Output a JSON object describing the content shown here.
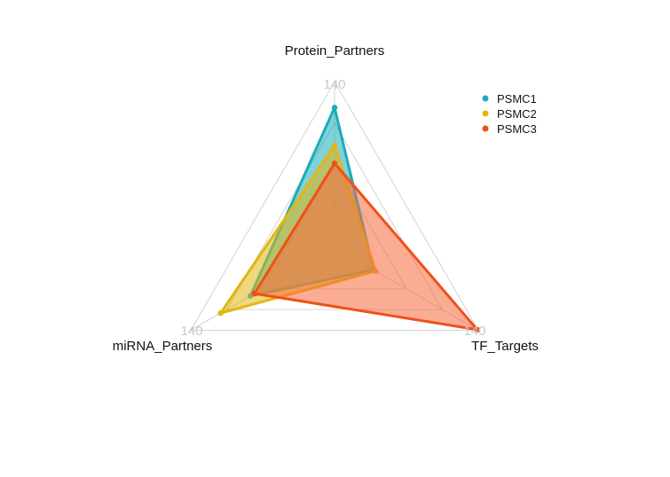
{
  "chart_data": {
    "type": "radar",
    "axes": [
      "Protein_Partners",
      "TF_Targets",
      "miRNA_Partners"
    ],
    "axis_max_label": "140",
    "max": 140,
    "grid_levels": 4,
    "legend_position": "top-right",
    "series": [
      {
        "name": "PSMC1",
        "color": "#1aacb8",
        "fill": "#1aacb8",
        "values": [
          118,
          38,
          82
        ]
      },
      {
        "name": "PSMC2",
        "color": "#e2b713",
        "fill": "#e2b713",
        "values": [
          86,
          40,
          111
        ]
      },
      {
        "name": "PSMC3",
        "color": "#f05018",
        "fill": "#f86a3c",
        "values": [
          71,
          139,
          78
        ]
      }
    ]
  }
}
